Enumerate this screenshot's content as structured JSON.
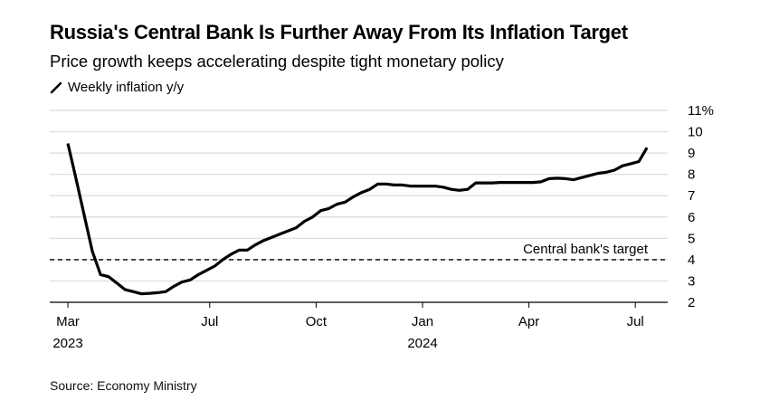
{
  "header": {
    "title": "Russia's Central Bank Is Further Away From Its Inflation Target",
    "subtitle": "Price growth keeps accelerating despite tight monetary policy",
    "legend_label": "Weekly inflation y/y"
  },
  "footer": {
    "source": "Source: Economy Ministry"
  },
  "chart_data": {
    "type": "line",
    "title": "Russia's Central Bank Is Further Away From Its Inflation Target",
    "subtitle": "Price growth keeps accelerating despite tight monetary policy",
    "xlabel": "",
    "ylabel": "",
    "ylim": [
      2,
      11
    ],
    "y_ticks": [
      2,
      3,
      4,
      5,
      6,
      7,
      8,
      9,
      10,
      11
    ],
    "y_tick_labels": [
      "2",
      "3",
      "4",
      "5",
      "6",
      "7",
      "8",
      "9",
      "10",
      "11%"
    ],
    "y_axis_position": "right",
    "grid": true,
    "legend": "top-left",
    "x_ticks": [
      {
        "month_index": 0,
        "label": "Mar",
        "year": "2023"
      },
      {
        "month_index": 4,
        "label": "Jul",
        "year": ""
      },
      {
        "month_index": 7,
        "label": "Oct",
        "year": ""
      },
      {
        "month_index": 10,
        "label": "Jan",
        "year": "2024"
      },
      {
        "month_index": 13,
        "label": "Apr",
        "year": ""
      },
      {
        "month_index": 16,
        "label": "Jul",
        "year": ""
      }
    ],
    "reference_lines": [
      {
        "value": 4,
        "label": "Central bank's target",
        "style": "dashed"
      }
    ],
    "series": [
      {
        "name": "Weekly inflation y/y",
        "x_months": [
          0.0,
          0.23,
          0.46,
          0.69,
          0.92,
          1.15,
          1.38,
          1.61,
          1.84,
          2.07,
          2.3,
          2.53,
          2.76,
          2.99,
          3.22,
          3.45,
          3.68,
          3.91,
          4.14,
          4.37,
          4.6,
          4.83,
          5.06,
          5.29,
          5.52,
          5.75,
          5.98,
          6.21,
          6.44,
          6.67,
          6.9,
          7.13,
          7.36,
          7.59,
          7.82,
          8.05,
          8.28,
          8.51,
          8.74,
          8.97,
          9.2,
          9.43,
          9.66,
          9.89,
          10.12,
          10.35,
          10.58,
          10.81,
          11.04,
          11.27,
          11.5,
          11.73,
          11.96,
          12.19,
          12.42,
          12.65,
          12.88,
          13.11,
          13.34,
          13.57,
          13.8,
          14.03,
          14.26,
          14.49,
          14.72,
          14.95,
          15.18,
          15.41,
          15.64,
          15.87,
          16.1,
          16.33
        ],
        "values": [
          9.45,
          7.8,
          6.1,
          4.4,
          3.3,
          3.2,
          2.9,
          2.6,
          2.5,
          2.4,
          2.42,
          2.45,
          2.5,
          2.75,
          2.95,
          3.05,
          3.3,
          3.5,
          3.7,
          4.0,
          4.25,
          4.45,
          4.45,
          4.7,
          4.9,
          5.05,
          5.2,
          5.35,
          5.5,
          5.8,
          6.0,
          6.3,
          6.4,
          6.6,
          6.7,
          6.95,
          7.15,
          7.3,
          7.55,
          7.55,
          7.5,
          7.5,
          7.45,
          7.45,
          7.45,
          7.45,
          7.4,
          7.3,
          7.25,
          7.3,
          7.6,
          7.6,
          7.6,
          7.62,
          7.62,
          7.62,
          7.62,
          7.62,
          7.65,
          7.8,
          7.82,
          7.8,
          7.75,
          7.85,
          7.95,
          8.05,
          8.1,
          8.2,
          8.4,
          8.5,
          8.6,
          9.25
        ]
      }
    ]
  }
}
